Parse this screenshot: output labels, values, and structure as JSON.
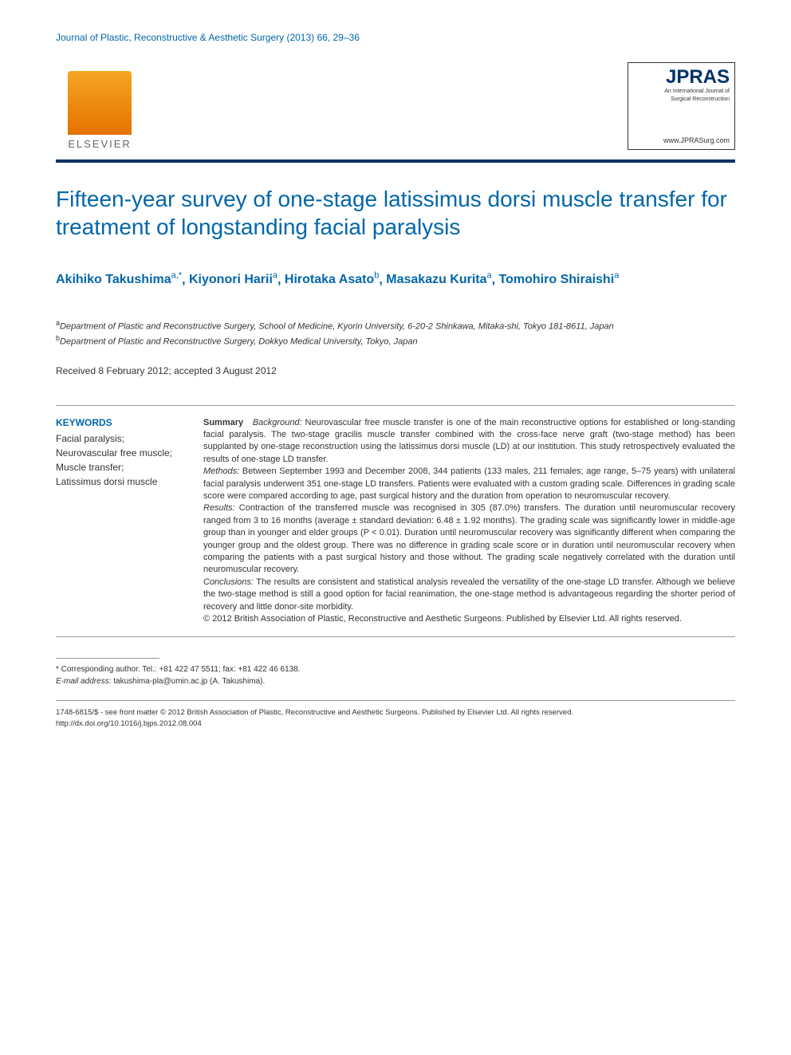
{
  "header": {
    "journal_citation": "Journal of Plastic, Reconstructive & Aesthetic Surgery (2013) 66, 29–36",
    "elsevier_label": "ELSEVIER",
    "jpras_title": "JPRAS",
    "jpras_sub1": "An International Journal of",
    "jpras_sub2": "Surgical Reconstruction",
    "jpras_url": "www.JPRASurg.com"
  },
  "title": "Fifteen-year survey of one-stage latissimus dorsi muscle transfer for treatment of longstanding facial paralysis",
  "authors": {
    "a1_name": "Akihiko Takushima",
    "a1_sup": "a,*",
    "a2_name": "Kiyonori Harii",
    "a2_sup": "a",
    "a3_name": "Hirotaka Asato",
    "a3_sup": "b",
    "a4_name": "Masakazu Kurita",
    "a4_sup": "a",
    "a5_name": "Tomohiro Shiraishi",
    "a5_sup": "a"
  },
  "affiliations": {
    "a_sup": "a",
    "a_text": "Department of Plastic and Reconstructive Surgery, School of Medicine, Kyorin University, 6-20-2 Shinkawa, Mitaka-shi, Tokyo 181-8611, Japan",
    "b_sup": "b",
    "b_text": "Department of Plastic and Reconstructive Surgery, Dokkyo Medical University, Tokyo, Japan"
  },
  "dates": "Received 8 February 2012; accepted 3 August 2012",
  "keywords": {
    "heading": "KEYWORDS",
    "list": "Facial paralysis;\nNeurovascular free muscle;\nMuscle transfer;\nLatissimus dorsi muscle"
  },
  "abstract": {
    "summary_label": "Summary",
    "background_label": "Background:",
    "background_text": " Neurovascular free muscle transfer is one of the main reconstructive options for established or long-standing facial paralysis. The two-stage gracilis muscle transfer combined with the cross-face nerve graft (two-stage method) has been supplanted by one-stage reconstruction using the latissimus dorsi muscle (LD) at our institution. This study retrospectively evaluated the results of one-stage LD transfer.",
    "methods_label": "Methods:",
    "methods_text": " Between September 1993 and December 2008, 344 patients (133 males, 211 females; age range, 5–75 years) with unilateral facial paralysis underwent 351 one-stage LD transfers. Patients were evaluated with a custom grading scale. Differences in grading scale score were compared according to age, past surgical history and the duration from operation to neuromuscular recovery.",
    "results_label": "Results:",
    "results_text": " Contraction of the transferred muscle was recognised in 305 (87.0%) transfers. The duration until neuromuscular recovery ranged from 3 to 16 months (average ± standard deviation: 6.48 ± 1.92 months). The grading scale was significantly lower in middle-age group than in younger and elder groups (P < 0.01). Duration until neuromuscular recovery was significantly different when comparing the younger group and the oldest group. There was no difference in grading scale score or in duration until neuromuscular recovery when comparing the patients with a past surgical history and those without. The grading scale negatively correlated with the duration until neuromuscular recovery.",
    "conclusions_label": "Conclusions:",
    "conclusions_text": " The results are consistent and statistical analysis revealed the versatility of the one-stage LD transfer. Although we believe the two-stage method is still a good option for facial reanimation, the one-stage method is advantageous regarding the shorter period of recovery and little donor-site morbidity.",
    "copyright": "© 2012 British Association of Plastic, Reconstructive and Aesthetic Surgeons. Published by Elsevier Ltd. All rights reserved."
  },
  "footnote": {
    "corr_label": "* Corresponding author. Tel.: ",
    "tel": "+81 422 47 5511",
    "fax_label": "; fax: ",
    "fax": "+81 422 46 6138.",
    "email_label": "E-mail address:",
    "email": " takushima-pla@umin.ac.jp",
    "email_suffix": " (A. Takushima)."
  },
  "footer": {
    "issn_line": "1748-6815/$ - see front matter © 2012 British Association of Plastic, Reconstructive and Aesthetic Surgeons. Published by Elsevier Ltd. All rights reserved.",
    "doi": "http://dx.doi.org/10.1016/j.bjps.2012.08.004"
  }
}
